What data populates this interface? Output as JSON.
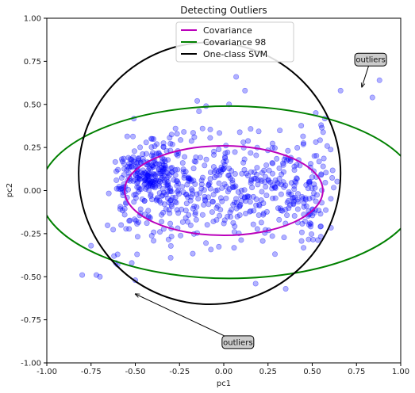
{
  "chart_data": {
    "type": "scatter",
    "title": "Detecting Outliers",
    "xlabel": "pc1",
    "ylabel": "pc2",
    "xlim": [
      -1.0,
      1.0
    ],
    "ylim": [
      -1.0,
      1.0
    ],
    "xticks": [
      "-1.00",
      "-0.75",
      "-0.50",
      "-0.25",
      "0.00",
      "0.25",
      "0.50",
      "0.75",
      "1.00"
    ],
    "yticks": [
      "-1.00",
      "-0.75",
      "-0.50",
      "-0.25",
      "0.00",
      "0.25",
      "0.50",
      "0.75",
      "1.00"
    ],
    "grid": false,
    "legend_position": "top-center",
    "points_color": "#0000ff",
    "points_alpha": 0.3,
    "series": [
      {
        "type": "scatter",
        "x": [
          -0.8,
          -0.75,
          -0.72,
          -0.7,
          -0.62,
          -0.61,
          -0.6,
          -0.6,
          -0.58,
          -0.56,
          -0.52,
          -0.5,
          -0.49,
          -0.3,
          -0.15,
          -0.14,
          -0.12,
          -0.1,
          0.03,
          0.07,
          0.12,
          0.18,
          0.35,
          0.52,
          0.55,
          0.66,
          0.84,
          0.88
        ],
        "y": [
          -0.49,
          -0.32,
          -0.49,
          -0.5,
          -0.38,
          -0.42,
          -0.37,
          -0.43,
          -0.2,
          -0.14,
          -0.42,
          -0.52,
          -0.37,
          -0.39,
          0.52,
          0.46,
          0.36,
          0.49,
          0.5,
          0.66,
          0.58,
          -0.54,
          -0.57,
          0.45,
          0.38,
          0.58,
          0.54,
          0.64
        ]
      }
    ],
    "ellipses": [
      {
        "name": "Covariance",
        "color": "#bb00bb",
        "center": [
          0.0,
          0.0
        ],
        "semi_axes": [
          0.56,
          0.26
        ],
        "angle": 0
      },
      {
        "name": "Covariance 98",
        "color": "#008000",
        "center": [
          0.03,
          -0.01
        ],
        "semi_axes": [
          1.07,
          0.5
        ],
        "angle": 0
      },
      {
        "name": "One-class SVM",
        "color": "#000000",
        "center": [
          -0.08,
          0.1
        ],
        "semi_axes": [
          0.74,
          0.76
        ],
        "angle": 0
      }
    ],
    "legend": [
      "Covariance",
      "Covariance 98",
      "One-class SVM"
    ],
    "annotations": [
      {
        "text": "outliers",
        "box_at": [
          0.83,
          0.76
        ],
        "arrow_to": [
          0.78,
          0.6
        ]
      },
      {
        "text": "outliers",
        "box_at": [
          0.08,
          -0.88
        ],
        "arrow_to": [
          -0.5,
          -0.6
        ]
      }
    ]
  }
}
